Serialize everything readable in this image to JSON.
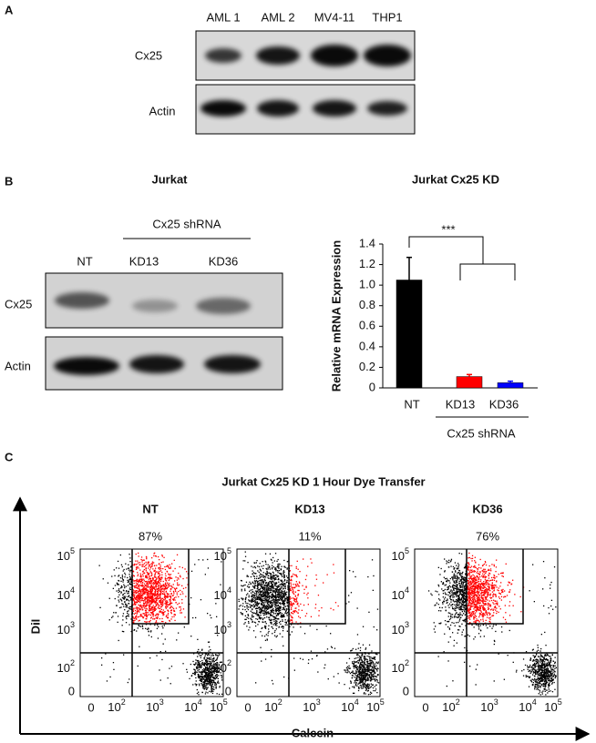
{
  "panel_labels": [
    "A",
    "B",
    "C"
  ],
  "panel_a": {
    "columns": [
      "AML 1",
      "AML 2",
      "MV4-11",
      "THP1"
    ],
    "rows": [
      "Cx25",
      "Actin"
    ]
  },
  "panel_b": {
    "blot_title": "Jurkat",
    "group_label": "Cx25 shRNA",
    "columns": [
      "NT",
      "KD13",
      "KD36"
    ],
    "rows": [
      "Cx25",
      "Actin"
    ]
  },
  "chart_data": {
    "type": "bar",
    "title": "Jurkat Cx25 KD",
    "y_label": "Relative mRNA Expression",
    "categories": [
      "NT",
      "KD13",
      "KD36"
    ],
    "values": [
      1.05,
      0.11,
      0.05
    ],
    "errors": [
      0.22,
      0.02,
      0.015
    ],
    "colors": [
      "#000000",
      "#ff0000",
      "#0000ff"
    ],
    "ylim": [
      0,
      1.4
    ],
    "yticks": [
      0,
      0.2,
      0.4,
      0.6,
      0.8,
      {
        "value": 1,
        "label": "1.0"
      },
      1.2,
      1.4
    ],
    "group_label": "Cx25 shRNA",
    "annotation": "***"
  },
  "panel_c": {
    "title": "Jurkat Cx25 KD 1 Hour Dye Transfer",
    "y_label": "DiI",
    "x_label": "Calcein",
    "ticks": [
      "0",
      {
        "base": "10",
        "exp": "2"
      },
      {
        "base": "10",
        "exp": "3"
      },
      {
        "base": "10",
        "exp": "4"
      },
      {
        "base": "10",
        "exp": "5"
      }
    ],
    "plots": [
      {
        "title": "NT",
        "gated": "87%"
      },
      {
        "title": "KD13",
        "gated": "11%"
      },
      {
        "title": "KD36",
        "gated": "76%"
      }
    ]
  }
}
